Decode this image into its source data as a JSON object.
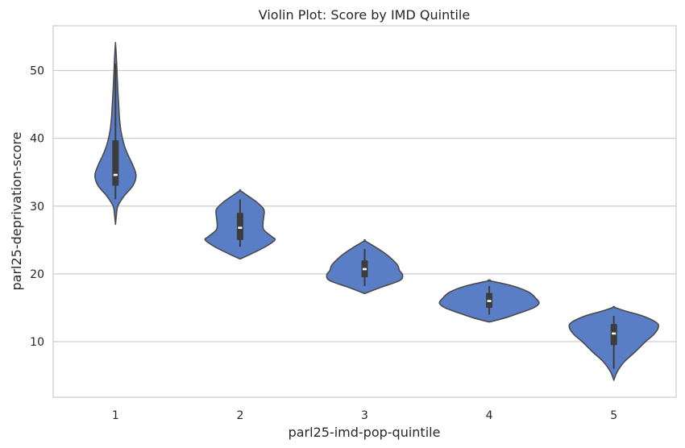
{
  "chart_data": {
    "type": "violin",
    "title": "Violin Plot: Score by IMD Quintile",
    "xlabel": "parl25-imd-pop-quintile",
    "ylabel": "parl25-deprivation-score",
    "categories": [
      "1",
      "2",
      "3",
      "4",
      "5"
    ],
    "ylim": [
      1.8,
      56.6
    ],
    "yticks": [
      10,
      20,
      30,
      40,
      50
    ],
    "grid": "horizontal",
    "colors": {
      "fill": "#5a7ec6",
      "outline": "#4a4a4a",
      "box": "#3c3c3c",
      "median": "#ffffff",
      "grid": "#cccccc",
      "spine": "#cccccc"
    },
    "distributions": [
      {
        "category": "1",
        "min": 27.3,
        "q1": 33.0,
        "median": 34.6,
        "q3": 39.7,
        "max": 54.0,
        "whisker_low": 31.0,
        "whisker_high": 51.0,
        "density": [
          [
            27.3,
            0.0
          ],
          [
            28.5,
            1.0
          ],
          [
            30.0,
            3.0
          ],
          [
            31.5,
            11.0
          ],
          [
            33.0,
            22.0
          ],
          [
            34.5,
            26.0
          ],
          [
            36.0,
            22.0
          ],
          [
            37.5,
            16.0
          ],
          [
            39.0,
            11.0
          ],
          [
            41.0,
            7.0
          ],
          [
            43.0,
            5.0
          ],
          [
            45.0,
            4.0
          ],
          [
            47.0,
            3.0
          ],
          [
            49.0,
            2.2
          ],
          [
            51.0,
            1.5
          ],
          [
            53.0,
            0.6
          ],
          [
            54.0,
            0.0
          ]
        ]
      },
      {
        "category": "2",
        "min": 22.2,
        "q1": 25.0,
        "median": 26.8,
        "q3": 29.0,
        "max": 32.3,
        "whisker_low": 24.0,
        "whisker_high": 31.0,
        "density": [
          [
            22.2,
            0.0
          ],
          [
            23.0,
            15.0
          ],
          [
            24.0,
            32.0
          ],
          [
            25.0,
            44.0
          ],
          [
            25.5,
            40.0
          ],
          [
            26.5,
            30.0
          ],
          [
            27.5,
            29.0
          ],
          [
            28.5,
            30.0
          ],
          [
            29.5,
            30.0
          ],
          [
            30.5,
            22.0
          ],
          [
            31.5,
            10.0
          ],
          [
            32.3,
            0.0
          ]
        ]
      },
      {
        "category": "3",
        "min": 17.1,
        "q1": 19.5,
        "median": 20.7,
        "q3": 22.0,
        "max": 24.9,
        "whisker_low": 18.2,
        "whisker_high": 23.7,
        "density": [
          [
            17.1,
            0.0
          ],
          [
            18.0,
            20.0
          ],
          [
            19.0,
            44.0
          ],
          [
            19.8,
            48.0
          ],
          [
            20.5,
            44.0
          ],
          [
            21.2,
            42.0
          ],
          [
            22.0,
            36.0
          ],
          [
            23.0,
            26.0
          ],
          [
            24.0,
            13.0
          ],
          [
            24.9,
            0.0
          ]
        ]
      },
      {
        "category": "4",
        "min": 12.9,
        "q1": 15.0,
        "median": 16.0,
        "q3": 17.2,
        "max": 19.0,
        "whisker_low": 14.0,
        "whisker_high": 18.2,
        "density": [
          [
            12.9,
            0.0
          ],
          [
            13.5,
            20.0
          ],
          [
            14.3,
            40.0
          ],
          [
            15.0,
            56.0
          ],
          [
            15.7,
            63.0
          ],
          [
            16.5,
            58.0
          ],
          [
            17.3,
            50.0
          ],
          [
            18.2,
            30.0
          ],
          [
            19.0,
            0.0
          ]
        ]
      },
      {
        "category": "5",
        "min": 4.3,
        "q1": 9.5,
        "median": 11.2,
        "q3": 12.6,
        "max": 15.1,
        "whisker_low": 6.0,
        "whisker_high": 13.8,
        "density": [
          [
            4.3,
            0.0
          ],
          [
            5.5,
            4.0
          ],
          [
            7.0,
            13.0
          ],
          [
            8.5,
            27.0
          ],
          [
            10.0,
            40.0
          ],
          [
            11.0,
            50.0
          ],
          [
            12.0,
            56.0
          ],
          [
            12.8,
            54.0
          ],
          [
            13.8,
            36.0
          ],
          [
            14.5,
            15.0
          ],
          [
            15.1,
            0.0
          ]
        ]
      }
    ]
  }
}
